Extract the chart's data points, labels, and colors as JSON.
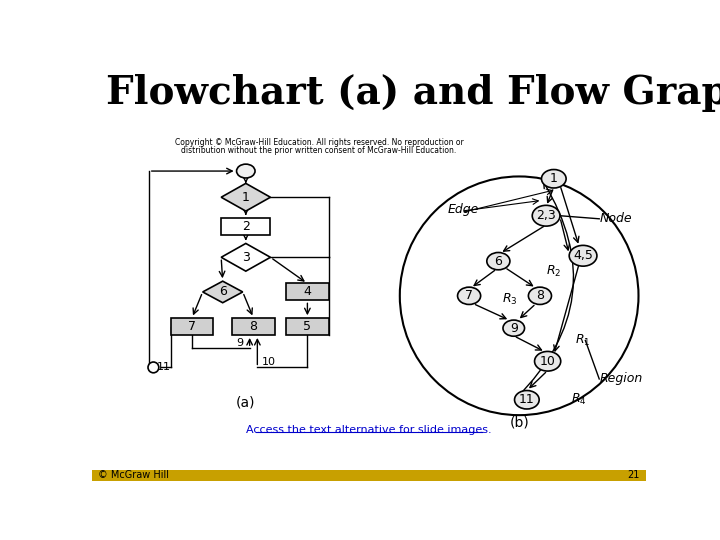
{
  "title": "Flowchart (a) and Flow Graph (b)",
  "title_fontsize": 28,
  "title_fontweight": "bold",
  "bg_color": "#ffffff",
  "bottom_bar_color": "#c8a000",
  "bottom_text": "© McGraw Hill",
  "bottom_right_text": "21",
  "link_text": "Access the text alternative for slide images.",
  "copyright_line1": "Copyright © McGraw-Hill Education. All rights reserved. No reproduction or",
  "copyright_line2": "distribution without the prior written consent of McGraw-Hill Education.",
  "label_a": "(a)",
  "label_b": "(b)"
}
